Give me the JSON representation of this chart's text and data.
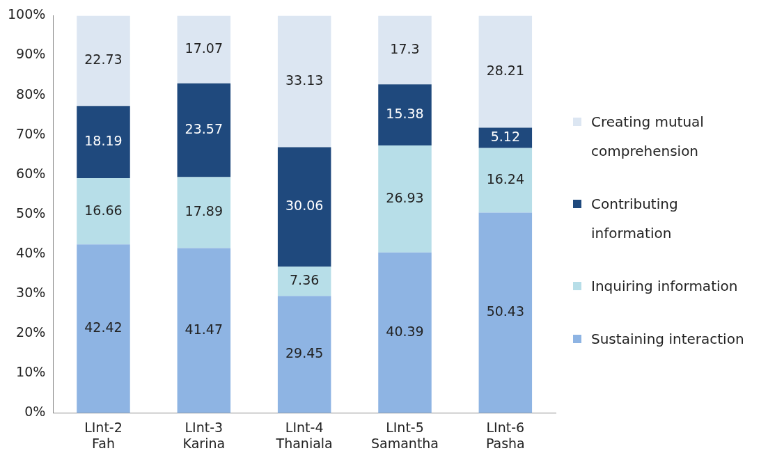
{
  "chart_data": {
    "type": "bar",
    "stacked": true,
    "data_labels": true,
    "legend": "right",
    "categories": [
      "LInt-2 Fah",
      "LInt-3 Karina",
      "LInt-4 Thaniala",
      "LInt-5 Samantha",
      "LInt-6 Pasha"
    ],
    "series": [
      {
        "name": "Sustaining interaction",
        "color": "#8eb4e3",
        "values": [
          42.42,
          41.47,
          29.45,
          40.39,
          50.43
        ]
      },
      {
        "name": "Inquiring information",
        "color": "#b7dee8",
        "values": [
          16.66,
          17.89,
          7.36,
          26.93,
          16.24
        ]
      },
      {
        "name": "Contributing information",
        "color": "#1f497d",
        "values": [
          18.19,
          23.57,
          30.06,
          15.38,
          5.12
        ]
      },
      {
        "name": "Creating mutual comprehension",
        "color": "#dce6f2",
        "values": [
          22.73,
          17.07,
          33.13,
          17.3,
          28.21
        ]
      }
    ],
    "ylim": [
      0,
      100
    ],
    "yticks": [
      {
        "value": 0,
        "label": "0%"
      },
      {
        "value": 10,
        "label": "10%"
      },
      {
        "value": 20,
        "label": "20%"
      },
      {
        "value": 30,
        "label": "30%"
      },
      {
        "value": 40,
        "label": "40%"
      },
      {
        "value": 50,
        "label": "50%"
      },
      {
        "value": 60,
        "label": "60%"
      },
      {
        "value": 70,
        "label": "70%"
      },
      {
        "value": 80,
        "label": "80%"
      },
      {
        "value": 90,
        "label": "90%"
      },
      {
        "value": 100,
        "label": "100%"
      }
    ]
  }
}
